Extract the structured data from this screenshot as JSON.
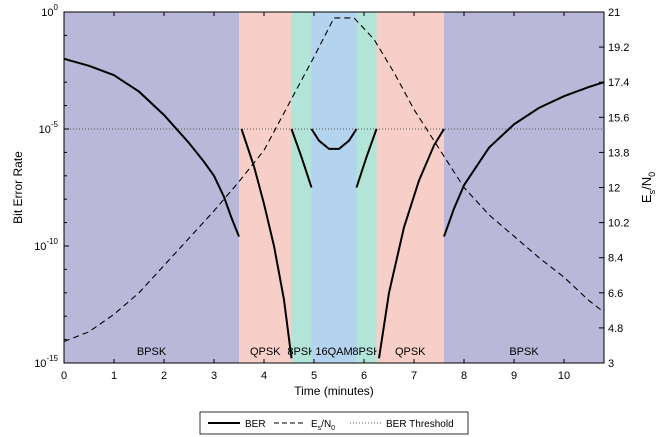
{
  "chart_data": {
    "type": "line",
    "xlabel": "Time (minutes)",
    "ylabel_left": "Bit Error Rate",
    "ylabel_right_main": "E",
    "ylabel_right_sub1": "s",
    "ylabel_right_mid": "/N",
    "ylabel_right_sub2": "0",
    "xlim": [
      0,
      10.8
    ],
    "ylim_left_log10": [
      -15,
      0
    ],
    "ylim_right": [
      3,
      21
    ],
    "left_scale": "log",
    "x_ticks": [
      "0",
      "1",
      "2",
      "3",
      "4",
      "5",
      "6",
      "7",
      "8",
      "9",
      "10"
    ],
    "y_left_ticks": [
      {
        "exp": 0,
        "base": "10",
        "sup": "0"
      },
      {
        "exp": -5,
        "base": "10",
        "sup": "-5"
      },
      {
        "exp": -10,
        "base": "10",
        "sup": "-10"
      },
      {
        "exp": -15,
        "base": "10",
        "sup": "-15"
      }
    ],
    "y_right_ticks": [
      "3",
      "4.8",
      "6.6",
      "8.4",
      "10.2",
      "12",
      "13.8",
      "15.6",
      "17.4",
      "19.2",
      "21"
    ],
    "regions": [
      {
        "label": "BPSK",
        "x0": 0.0,
        "x1": 3.5,
        "color": "#b9b8d9"
      },
      {
        "label": "QPSK",
        "x0": 3.5,
        "x1": 4.55,
        "color": "#f8cfc8"
      },
      {
        "label": "8PSK",
        "x0": 4.55,
        "x1": 4.95,
        "color": "#b2e4d8"
      },
      {
        "label": "16QAM",
        "x0": 4.95,
        "x1": 5.85,
        "color": "#b3d3ee"
      },
      {
        "label": "8PSK",
        "x0": 5.85,
        "x1": 6.25,
        "color": "#b2e4d8"
      },
      {
        "label": "QPSK",
        "x0": 6.25,
        "x1": 7.6,
        "color": "#f8cfc8"
      },
      {
        "label": "BPSK",
        "x0": 7.6,
        "x1": 10.8,
        "color": "#b9b8d9"
      }
    ],
    "ber_threshold_log10": -5,
    "series": [
      {
        "name": "BER",
        "style": "solid",
        "axis": "left",
        "segments": [
          {
            "x": [
              0.0,
              0.5,
              1.0,
              1.5,
              2.0,
              2.5,
              2.8,
              3.0,
              3.2,
              3.35,
              3.5
            ],
            "log10_y": [
              -2.0,
              -2.3,
              -2.7,
              -3.4,
              -4.4,
              -5.6,
              -6.4,
              -7.0,
              -7.9,
              -8.8,
              -9.6
            ]
          },
          {
            "x": [
              3.55,
              3.8,
              4.0,
              4.2,
              4.4,
              4.55
            ],
            "log10_y": [
              -5.0,
              -6.6,
              -8.2,
              -10.0,
              -12.3,
              -14.8
            ]
          },
          {
            "x": [
              4.55,
              4.75,
              4.95
            ],
            "log10_y": [
              -5.0,
              -6.2,
              -7.5
            ]
          },
          {
            "x": [
              4.95,
              5.1,
              5.3,
              5.5,
              5.7,
              5.85
            ],
            "log10_y": [
              -5.0,
              -5.5,
              -5.85,
              -5.85,
              -5.5,
              -5.0
            ]
          },
          {
            "x": [
              5.85,
              6.05,
              6.25
            ],
            "log10_y": [
              -7.5,
              -6.2,
              -5.0
            ]
          },
          {
            "x": [
              6.3,
              6.5,
              6.8,
              7.1,
              7.4,
              7.6
            ],
            "log10_y": [
              -14.8,
              -12.0,
              -9.2,
              -7.2,
              -5.7,
              -5.0
            ]
          },
          {
            "x": [
              7.6,
              7.8,
              8.0,
              8.5,
              9.0,
              9.5,
              10.0,
              10.5,
              10.8
            ],
            "log10_y": [
              -9.6,
              -8.4,
              -7.4,
              -5.8,
              -4.8,
              -4.1,
              -3.6,
              -3.2,
              -3.0
            ]
          }
        ]
      },
      {
        "name": "E",
        "name_sub1": "s",
        "name_mid": "/N",
        "name_sub2": "0",
        "style": "dashed",
        "axis": "right",
        "x": [
          0.0,
          0.5,
          1.0,
          1.5,
          2.0,
          2.5,
          3.0,
          3.5,
          4.0,
          4.5,
          5.0,
          5.4,
          5.8,
          6.2,
          6.6,
          7.0,
          7.5,
          8.0,
          8.5,
          9.0,
          9.5,
          10.0,
          10.5,
          10.8
        ],
        "y": [
          4.1,
          4.6,
          5.5,
          6.6,
          8.0,
          9.4,
          10.8,
          12.3,
          13.9,
          16.3,
          18.7,
          20.7,
          20.7,
          19.6,
          17.9,
          16.0,
          14.0,
          12.0,
          10.6,
          9.5,
          8.4,
          7.4,
          6.2,
          5.6
        ]
      }
    ],
    "legend": {
      "placement": "bottom-center",
      "ber_label": "BER",
      "threshold_label": "BER Threshold"
    }
  }
}
